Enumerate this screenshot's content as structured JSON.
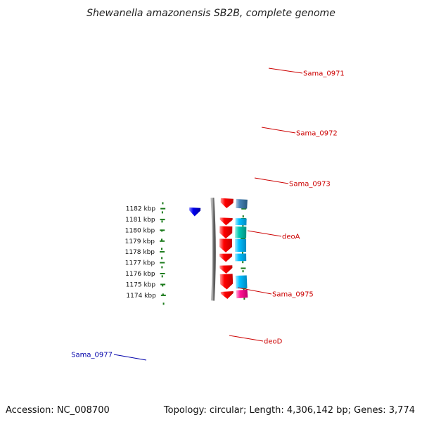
{
  "title": "Shewanella amazonensis SB2B, complete genome",
  "footer": {
    "accession": "Accession: NC_008700",
    "summary": "Topology: circular; Length: 4,306,142 bp; Genes: 3,774"
  },
  "scale_ticks": [
    "1174 kbp",
    "1175 kbp",
    "1176 kbp",
    "1177 kbp",
    "1178 kbp",
    "1179 kbp",
    "1180 kbp",
    "1181 kbp",
    "1182 kbp"
  ],
  "gene_labels": {
    "sama_0971": "Sama_0971",
    "sama_0972": "Sama_0972",
    "sama_0973": "Sama_0973",
    "deoA": "deoA",
    "sama_0975": "Sama_0975",
    "deoD": "deoD",
    "sama_0977": "Sama_0977"
  },
  "colors": {
    "forward_cds": "#ff0000",
    "forward_feature": "#00bfff",
    "forward_feature_alt": "#00c8b4",
    "reverse_cds": "#0000ee",
    "rna_feature": "#ff1493",
    "backbone": "#808080",
    "scale_dots": "#1a7a1a",
    "forward_label": "#cc0000",
    "reverse_label": "#0000aa"
  }
}
